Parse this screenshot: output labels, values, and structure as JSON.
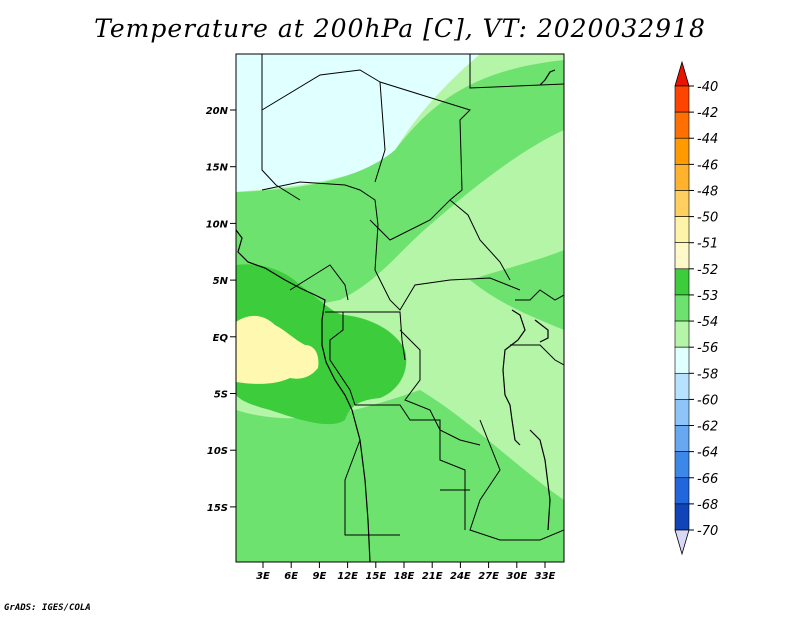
{
  "title": "Temperature at 200hPa [C], VT: 2020032918",
  "credit": "GrADS: IGES/COLA",
  "map": {
    "lat_labels": [
      "20N",
      "15N",
      "10N",
      "5N",
      "EQ",
      "5S",
      "10S",
      "15S"
    ],
    "lon_labels": [
      "3E",
      "6E",
      "9E",
      "12E",
      "15E",
      "18E",
      "21E",
      "24E",
      "27E",
      "30E",
      "33E"
    ]
  },
  "colorbar": {
    "labels": [
      "-40",
      "-42",
      "-44",
      "-46",
      "-48",
      "-50",
      "-51",
      "-52",
      "-53",
      "-54",
      "-56",
      "-58",
      "-60",
      "-62",
      "-64",
      "-66",
      "-68",
      "-70"
    ],
    "colors": [
      "#ff1d00",
      "#ff4400",
      "#ff7000",
      "#ff9a00",
      "#ffb22e",
      "#ffd060",
      "#fff3aa",
      "#fff8c8",
      "#3ccc3c",
      "#6ee26e",
      "#b4f5a8",
      "#e0ffff",
      "#b6e2ff",
      "#8ec4f8",
      "#68a8f0",
      "#3c88e8",
      "#2266dd",
      "#1044b8",
      "#0a2a88",
      "#050a5a"
    ],
    "top_arrow_color": "#e61400",
    "bottom_arrow_color": "#d8d8f8"
  },
  "field_colors": {
    "band_minus50": "#fff8b0",
    "band_minus51": "#3ccc3c",
    "band_minus52": "#6ee26e",
    "band_minus53": "#b4f5a8",
    "band_minus54": "#e0ffff"
  }
}
